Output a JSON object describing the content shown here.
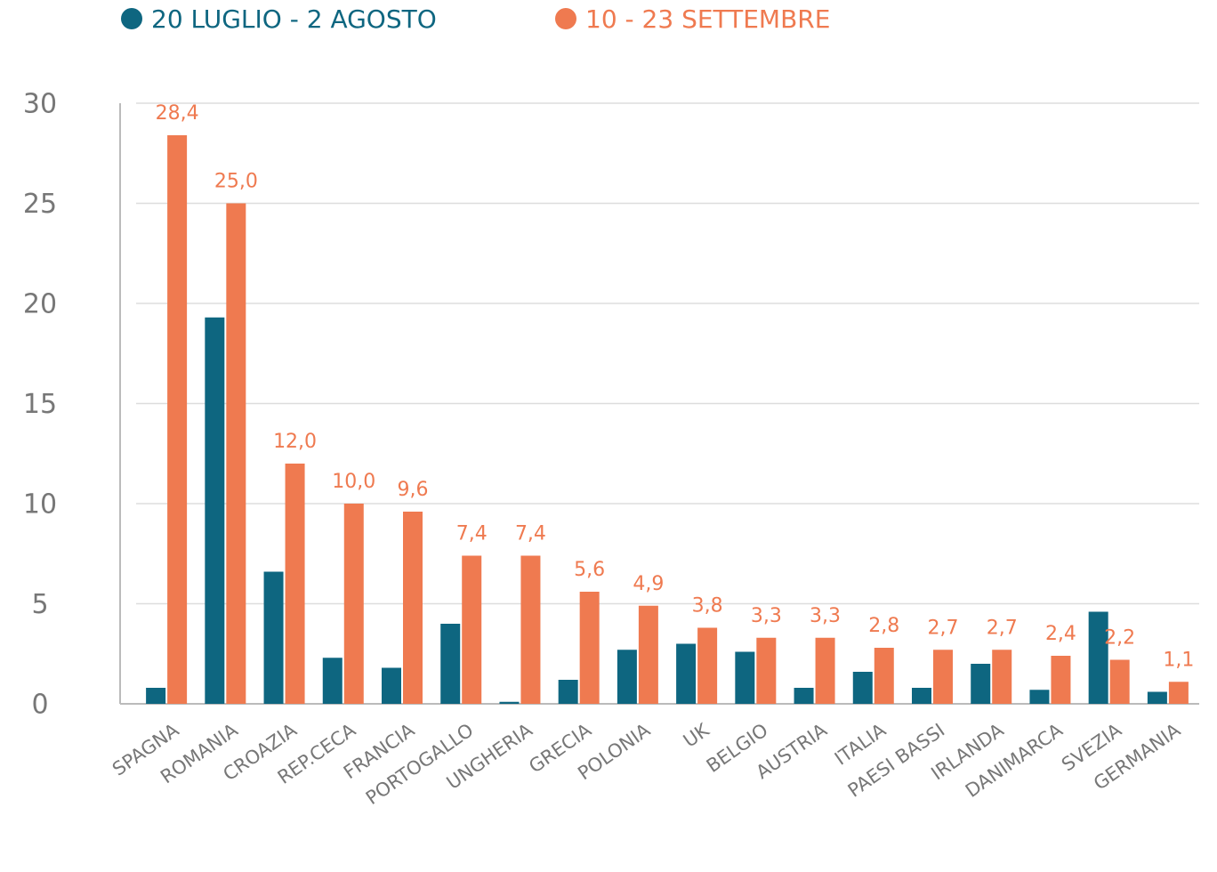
{
  "chart_data": {
    "type": "bar",
    "categories": [
      "SPAGNA",
      "ROMANIA",
      "CROAZIA",
      "REP.CECA",
      "FRANCIA",
      "PORTOGALLO",
      "UNGHERIA",
      "GRECIA",
      "POLONIA",
      "UK",
      "BELGIO",
      "AUSTRIA",
      "ITALIA",
      "PAESI BASSI",
      "IRLANDA",
      "DANIMARCA",
      "SVEZIA",
      "GERMANIA"
    ],
    "series": [
      {
        "name": "20 LUGLIO - 2 AGOSTO",
        "color": "#0e6680",
        "values": [
          0.8,
          19.3,
          6.6,
          2.3,
          1.8,
          4.0,
          0.1,
          1.2,
          2.7,
          3.0,
          2.6,
          0.8,
          1.6,
          0.8,
          2.0,
          0.7,
          4.6,
          0.6
        ]
      },
      {
        "name": "10 - 23 SETTEMBRE",
        "color": "#ef7a50",
        "values": [
          28.4,
          25.0,
          12.0,
          10.0,
          9.6,
          7.4,
          7.4,
          5.6,
          4.9,
          3.8,
          3.3,
          3.3,
          2.8,
          2.7,
          2.7,
          2.4,
          2.2,
          1.1
        ],
        "value_labels": [
          "28,4",
          "25,0",
          "12,0",
          "10,0",
          "9,6",
          "7,4",
          "7,4",
          "5,6",
          "4,9",
          "3,8",
          "3,3",
          "3,3",
          "2,8",
          "2,7",
          "2,7",
          "2,4",
          "2,2",
          "1,1"
        ]
      }
    ],
    "ylim": [
      0,
      30
    ],
    "yticks": [
      0,
      5,
      10,
      15,
      20,
      25,
      30
    ],
    "grid": true
  }
}
